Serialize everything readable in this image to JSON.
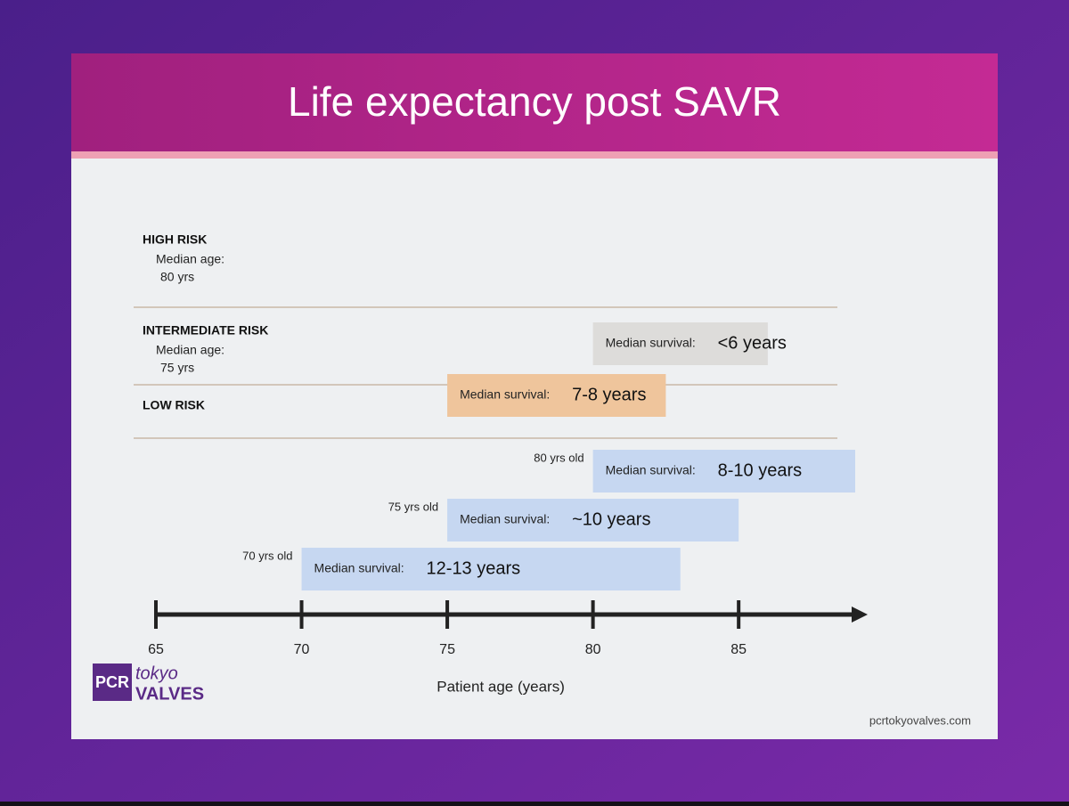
{
  "chart_data": {
    "type": "range_bar",
    "title": "Life expectancy post SAVR",
    "xlabel": "Patient age (years)",
    "xlim": [
      65,
      89
    ],
    "xticks": [
      65,
      70,
      75,
      80,
      85
    ],
    "groups": [
      {
        "name": "HIGH RISK",
        "age_caption": "Median age:",
        "age": "80 yrs"
      },
      {
        "name": "INTERMEDIATE RISK",
        "age_caption": "Median age:",
        "age": "75 yrs"
      },
      {
        "name": "LOW RISK"
      }
    ],
    "bars": [
      {
        "start": 80,
        "end": 86,
        "color": "#dddcda",
        "caption": "Median survival:",
        "survival": "<6 years"
      },
      {
        "start": 75,
        "end": 82.5,
        "color": "#efc59c",
        "caption": "Median survival:",
        "survival": "7-8 years"
      },
      {
        "start": 80,
        "end": 89,
        "color": "#c6d7f1",
        "caption": "Median survival:",
        "survival": "8-10 years",
        "age_label": "80 yrs old"
      },
      {
        "start": 75,
        "end": 85,
        "color": "#c6d7f1",
        "caption": "Median survival:",
        "survival": "~10 years",
        "age_label": "75 yrs old"
      },
      {
        "start": 70,
        "end": 83,
        "color": "#c6d7f1",
        "caption": "Median survival:",
        "survival": "12-13 years",
        "age_label": "70 yrs old"
      }
    ]
  },
  "branding": {
    "logo_box": "PCR",
    "logo_top": "tokyo",
    "logo_bottom": "VALVES",
    "website": "pcrtokyovalves.com"
  }
}
